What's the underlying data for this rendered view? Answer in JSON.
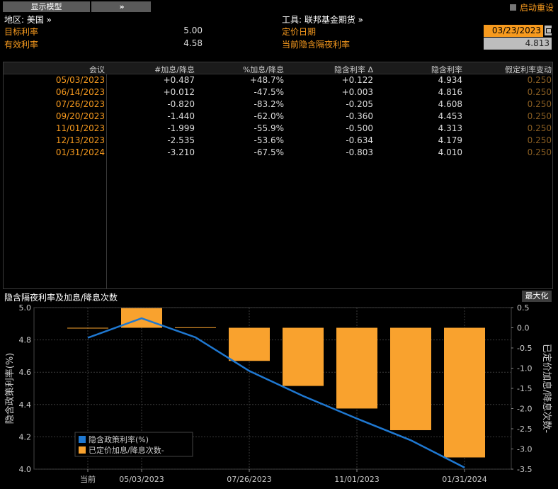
{
  "toolbar": {
    "model_button": "显示模型",
    "expand_button": "»",
    "restart_label": "启动重设"
  },
  "info": {
    "region": "地区: 美国 »",
    "target_rate_label": "目标利率",
    "target_rate_value": "5.00",
    "effective_rate_label": "有效利率",
    "effective_rate_value": "4.58",
    "instrument": "工具: 联邦基金期货 »",
    "pricing_date_label": "定价日期",
    "pricing_date_value": "03/23/2023",
    "implied_overnight_label": "当前隐含隔夜利率",
    "implied_overnight_value": "4.813"
  },
  "table": {
    "headers": [
      "会议",
      "#加息/降息",
      "%加息/降息",
      "隐含利率 Δ",
      "隐含利率",
      "假定利率变动"
    ],
    "rows": [
      [
        "05/03/2023",
        "+0.487",
        "+48.7%",
        "+0.122",
        "4.934",
        "0.250"
      ],
      [
        "06/14/2023",
        "+0.012",
        "-47.5%",
        "+0.003",
        "4.816",
        "0.250"
      ],
      [
        "07/26/2023",
        "-0.820",
        "-83.2%",
        "-0.205",
        "4.608",
        "0.250"
      ],
      [
        "09/20/2023",
        "-1.440",
        "-62.0%",
        "-0.360",
        "4.453",
        "0.250"
      ],
      [
        "11/01/2023",
        "-1.999",
        "-55.9%",
        "-0.500",
        "4.313",
        "0.250"
      ],
      [
        "12/13/2023",
        "-2.535",
        "-53.6%",
        "-0.634",
        "4.179",
        "0.250"
      ],
      [
        "01/31/2024",
        "-3.210",
        "-67.5%",
        "-0.803",
        "4.010",
        "0.250"
      ]
    ]
  },
  "chart_section": {
    "title": "隐含隔夜利率及加息/降息次数",
    "maximize_button": "最大化"
  },
  "colors": {
    "accent_orange": "#f79a1e",
    "line_blue": "#1f78d1",
    "bar_orange": "#f9a22e"
  },
  "chart_data": {
    "type": "bar",
    "categories": [
      "当前",
      "05/03/2023",
      "06/14/2023",
      "07/26/2023",
      "09/20/2023",
      "11/01/2023",
      "12/13/2023",
      "01/31/2024"
    ],
    "x_tick_labels": [
      "当前",
      "05/03/2023",
      "07/26/2023",
      "11/01/2023",
      "01/31/2024"
    ],
    "series": [
      {
        "name": "已定价加息/降息次数-",
        "type": "bar",
        "axis": "right",
        "values": [
          0,
          0.487,
          0.012,
          -0.82,
          -1.44,
          -1.999,
          -2.535,
          -3.21
        ]
      },
      {
        "name": "隐含政策利率(%)",
        "type": "line",
        "axis": "left",
        "values": [
          4.813,
          4.934,
          4.816,
          4.608,
          4.453,
          4.313,
          4.179,
          4.01
        ]
      }
    ],
    "ylabel_left": "隐含政策利率(%)",
    "ylabel_right": "已定价加息/降息次数-",
    "ylim_left": [
      4.0,
      5.0
    ],
    "yticks_left": [
      "4.0",
      "4.2",
      "4.4",
      "4.6",
      "4.8",
      "5.0"
    ],
    "ylim_right": [
      -3.5,
      0.5
    ],
    "yticks_right": [
      "-3.5",
      "-3.0",
      "-2.5",
      "-2.0",
      "-1.5",
      "-1.0",
      "-0.5",
      "0.0",
      "0.5"
    ],
    "grid": true,
    "legend": "bottom-left"
  }
}
